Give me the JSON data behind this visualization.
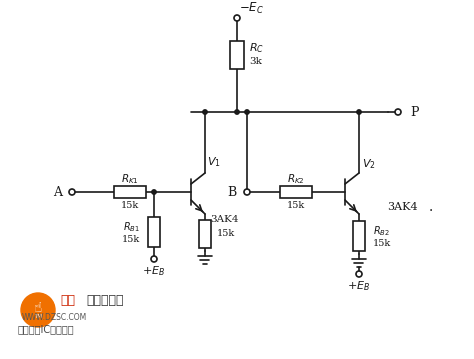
{
  "bg_color": "#ffffff",
  "line_color": "#1a1a1a",
  "text_color": "#1a1a1a",
  "figsize": [
    4.74,
    3.59
  ],
  "dpi": 100,
  "watermark_text": "维库电子市场网",
  "watermark_sub": "全球最大IC采购网站",
  "watermark_url": "www.dzsc.com"
}
